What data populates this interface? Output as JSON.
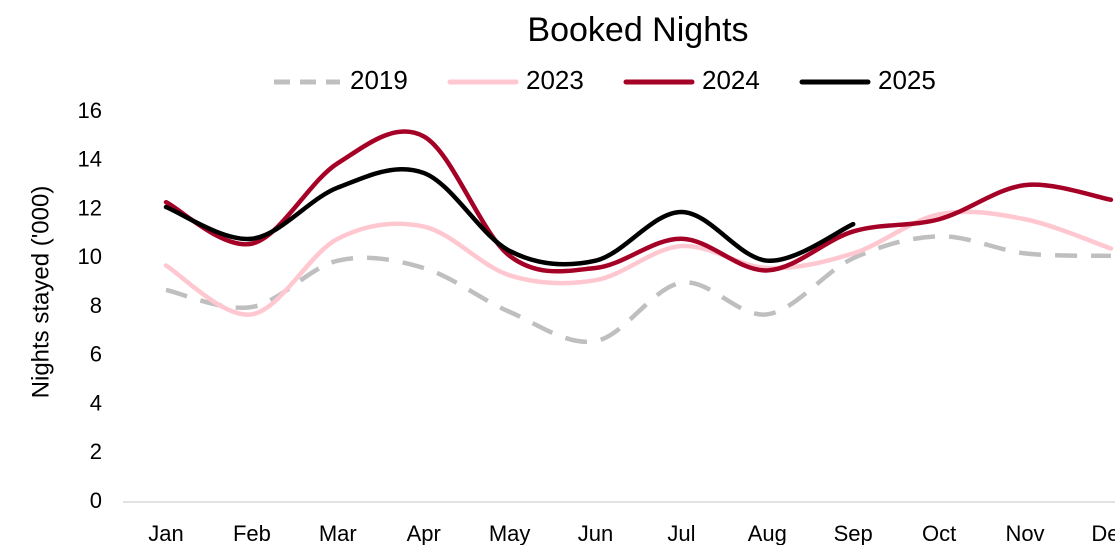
{
  "chart_data": {
    "type": "line",
    "title": "Booked Nights",
    "y_label": "Nights stayed ('000)",
    "categories": [
      "Jan",
      "Feb",
      "Mar",
      "Apr",
      "May",
      "Jun",
      "Jul",
      "Aug",
      "Sep",
      "Oct",
      "Nov",
      "Dec"
    ],
    "series": [
      {
        "name": "2019",
        "color": "#bfbfbf",
        "dashed": true,
        "values": [
          8.7,
          8.0,
          9.9,
          9.6,
          7.8,
          6.6,
          9.0,
          7.7,
          10.0,
          10.9,
          10.2,
          10.1
        ]
      },
      {
        "name": "2023",
        "color": "#ffc7d0",
        "dashed": false,
        "values": [
          9.7,
          7.7,
          10.8,
          11.3,
          9.3,
          9.1,
          10.5,
          9.6,
          10.2,
          11.8,
          11.6,
          10.4
        ]
      },
      {
        "name": "2024",
        "color": "#a50026",
        "dashed": false,
        "values": [
          12.3,
          10.6,
          13.9,
          15.0,
          10.1,
          9.6,
          10.8,
          9.5,
          11.1,
          11.6,
          13.0,
          12.4
        ]
      },
      {
        "name": "2025",
        "color": "#000000",
        "dashed": false,
        "values": [
          12.1,
          10.8,
          12.9,
          13.5,
          10.3,
          9.9,
          11.9,
          9.9,
          11.4,
          null,
          null,
          null
        ]
      }
    ],
    "ylim": [
      0,
      16
    ],
    "yticks": [
      0,
      2,
      4,
      6,
      8,
      10,
      12,
      14,
      16
    ],
    "legend": "top",
    "grid": false
  }
}
